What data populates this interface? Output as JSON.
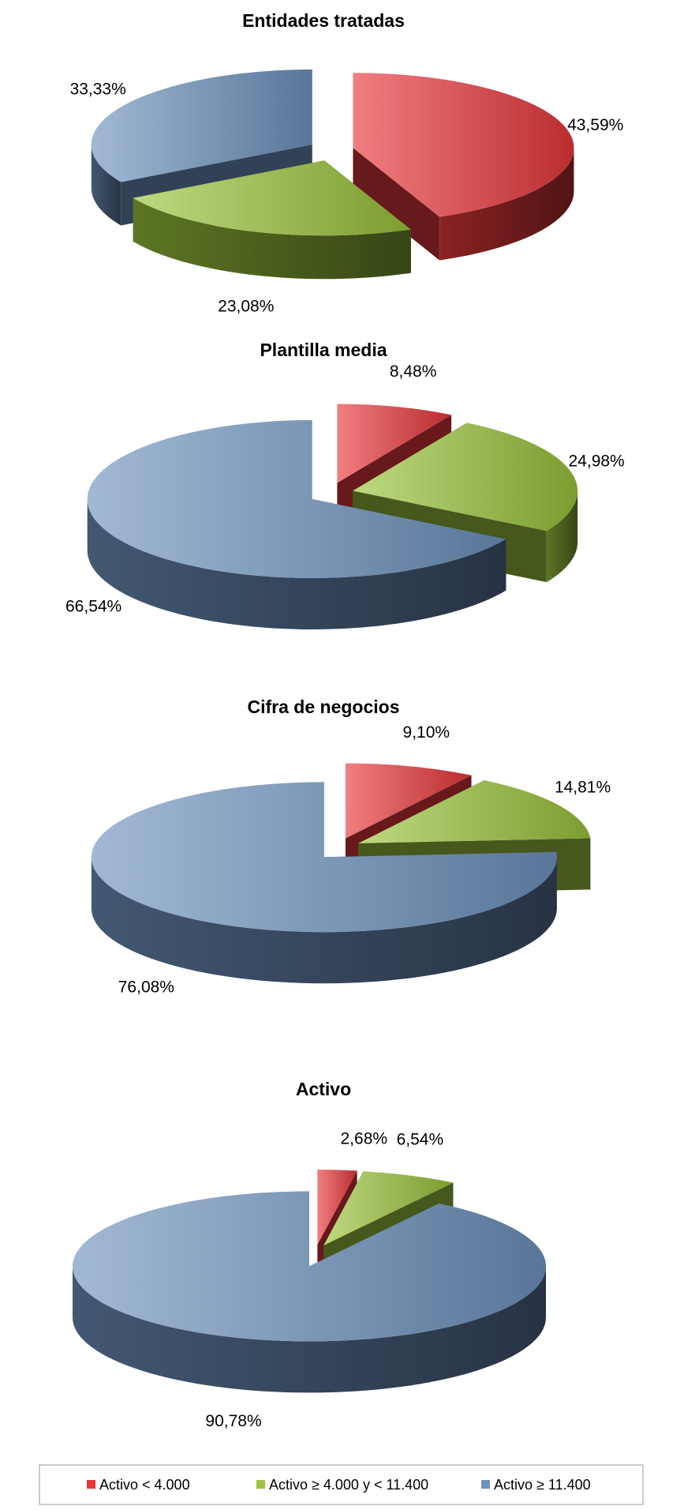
{
  "legend": {
    "categories": [
      "Activo < 4.000",
      "Activo ≥ 4.000 y < 11.400",
      "Activo ≥ 11.400"
    ],
    "colors": [
      "#e8383b",
      "#9bc43c",
      "#6f93bf"
    ]
  },
  "chart_data": [
    {
      "type": "pie",
      "title": "Entidades tratadas",
      "values": [
        43.59,
        23.08,
        33.33
      ],
      "value_labels": [
        "43,59%",
        "23,08%",
        "33,33%"
      ]
    },
    {
      "type": "pie",
      "title": "Plantilla media",
      "values": [
        8.48,
        24.98,
        66.54
      ],
      "value_labels": [
        "8,48%",
        "24,98%",
        "66,54%"
      ]
    },
    {
      "type": "pie",
      "title": "Cifra de negocios",
      "values": [
        9.1,
        14.81,
        76.08
      ],
      "value_labels": [
        "9,10%",
        "14,81%",
        "76,08%"
      ]
    },
    {
      "type": "pie",
      "title": "Activo",
      "values": [
        2.68,
        6.54,
        90.78
      ],
      "value_labels": [
        "2,68%",
        "6,54%",
        "90,78%"
      ]
    }
  ]
}
